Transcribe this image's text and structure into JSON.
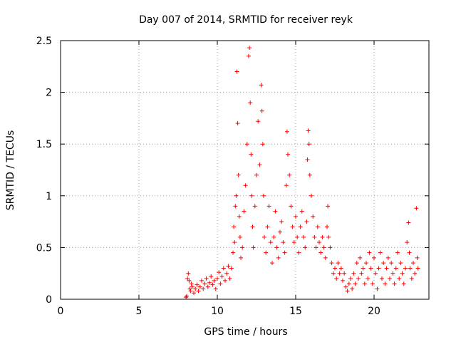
{
  "chart_data": {
    "type": "scatter",
    "title": "Day 007 of 2014, SRMTID for receiver reyk",
    "xlabel": "GPS time / hours",
    "ylabel": "SRMTID / TECUs",
    "xlim": [
      0,
      23.5
    ],
    "ylim": [
      0,
      2.5
    ],
    "x_ticks": [
      0,
      5,
      10,
      15,
      20
    ],
    "x_tick_labels": [
      "0",
      "5",
      "10",
      "15",
      "20"
    ],
    "y_ticks": [
      0,
      0.5,
      1,
      1.5,
      2,
      2.5
    ],
    "y_tick_labels": [
      "0",
      "0.5",
      "1",
      "1.5",
      "2",
      "2.5"
    ],
    "grid": true,
    "marker": "plus",
    "series": [
      {
        "name": "SRMTID",
        "color": "#ff0000",
        "points": [
          [
            8.0,
            0.02
          ],
          [
            8.05,
            0.03
          ],
          [
            8.1,
            0.2
          ],
          [
            8.15,
            0.25
          ],
          [
            8.2,
            0.18
          ],
          [
            8.25,
            0.1
          ],
          [
            8.3,
            0.08
          ],
          [
            8.35,
            0.15
          ],
          [
            8.4,
            0.12
          ],
          [
            8.5,
            0.06
          ],
          [
            8.6,
            0.1
          ],
          [
            8.7,
            0.14
          ],
          [
            8.8,
            0.08
          ],
          [
            8.9,
            0.12
          ],
          [
            9.0,
            0.18
          ],
          [
            9.1,
            0.1
          ],
          [
            9.2,
            0.15
          ],
          [
            9.3,
            0.2
          ],
          [
            9.4,
            0.12
          ],
          [
            9.5,
            0.16
          ],
          [
            9.6,
            0.22
          ],
          [
            9.7,
            0.14
          ],
          [
            9.8,
            0.18
          ],
          [
            9.9,
            0.1
          ],
          [
            10.0,
            0.2
          ],
          [
            10.1,
            0.26
          ],
          [
            10.2,
            0.15
          ],
          [
            10.3,
            0.22
          ],
          [
            10.4,
            0.3
          ],
          [
            10.5,
            0.18
          ],
          [
            10.6,
            0.25
          ],
          [
            10.7,
            0.32
          ],
          [
            10.8,
            0.2
          ],
          [
            10.9,
            0.3
          ],
          [
            11.0,
            0.45
          ],
          [
            11.05,
            0.7
          ],
          [
            11.1,
            0.55
          ],
          [
            11.15,
            0.9
          ],
          [
            11.2,
            1.0
          ],
          [
            11.25,
            2.2
          ],
          [
            11.3,
            1.7
          ],
          [
            11.35,
            1.2
          ],
          [
            11.4,
            0.8
          ],
          [
            11.45,
            0.6
          ],
          [
            11.5,
            0.4
          ],
          [
            11.6,
            0.5
          ],
          [
            11.7,
            0.85
          ],
          [
            11.8,
            1.1
          ],
          [
            11.9,
            1.5
          ],
          [
            12.0,
            2.35
          ],
          [
            12.05,
            2.43
          ],
          [
            12.1,
            1.9
          ],
          [
            12.15,
            1.4
          ],
          [
            12.2,
            1.0
          ],
          [
            12.25,
            0.7
          ],
          [
            12.3,
            0.5
          ],
          [
            12.4,
            0.9
          ],
          [
            12.5,
            1.2
          ],
          [
            12.6,
            1.72
          ],
          [
            12.7,
            1.3
          ],
          [
            12.8,
            2.07
          ],
          [
            12.85,
            1.82
          ],
          [
            12.9,
            1.5
          ],
          [
            12.95,
            1.0
          ],
          [
            13.0,
            0.6
          ],
          [
            13.1,
            0.45
          ],
          [
            13.2,
            0.7
          ],
          [
            13.3,
            0.9
          ],
          [
            13.4,
            0.55
          ],
          [
            13.5,
            0.35
          ],
          [
            13.6,
            0.6
          ],
          [
            13.7,
            0.85
          ],
          [
            13.8,
            0.5
          ],
          [
            13.9,
            0.4
          ],
          [
            14.0,
            0.65
          ],
          [
            14.1,
            0.75
          ],
          [
            14.2,
            0.55
          ],
          [
            14.3,
            0.45
          ],
          [
            14.4,
            1.1
          ],
          [
            14.45,
            1.62
          ],
          [
            14.5,
            1.4
          ],
          [
            14.6,
            1.2
          ],
          [
            14.7,
            0.9
          ],
          [
            14.8,
            0.7
          ],
          [
            14.9,
            0.55
          ],
          [
            15.0,
            0.8
          ],
          [
            15.1,
            0.6
          ],
          [
            15.2,
            0.45
          ],
          [
            15.3,
            0.7
          ],
          [
            15.4,
            0.85
          ],
          [
            15.5,
            0.6
          ],
          [
            15.6,
            0.5
          ],
          [
            15.7,
            0.75
          ],
          [
            15.75,
            1.35
          ],
          [
            15.8,
            1.63
          ],
          [
            15.85,
            1.5
          ],
          [
            15.9,
            1.2
          ],
          [
            16.0,
            1.0
          ],
          [
            16.1,
            0.8
          ],
          [
            16.2,
            0.6
          ],
          [
            16.3,
            0.5
          ],
          [
            16.4,
            0.7
          ],
          [
            16.5,
            0.55
          ],
          [
            16.6,
            0.45
          ],
          [
            16.7,
            0.6
          ],
          [
            16.8,
            0.5
          ],
          [
            16.9,
            0.4
          ],
          [
            17.0,
            0.7
          ],
          [
            17.05,
            0.9
          ],
          [
            17.1,
            0.6
          ],
          [
            17.2,
            0.5
          ],
          [
            17.3,
            0.35
          ],
          [
            17.4,
            0.25
          ],
          [
            17.5,
            0.3
          ],
          [
            17.6,
            0.2
          ],
          [
            17.7,
            0.35
          ],
          [
            17.8,
            0.25
          ],
          [
            17.9,
            0.3
          ],
          [
            18.0,
            0.18
          ],
          [
            18.1,
            0.25
          ],
          [
            18.2,
            0.12
          ],
          [
            18.3,
            0.08
          ],
          [
            18.4,
            0.15
          ],
          [
            18.5,
            0.2
          ],
          [
            18.6,
            0.1
          ],
          [
            18.7,
            0.25
          ],
          [
            18.8,
            0.15
          ],
          [
            18.9,
            0.35
          ],
          [
            19.0,
            0.2
          ],
          [
            19.1,
            0.4
          ],
          [
            19.2,
            0.25
          ],
          [
            19.3,
            0.3
          ],
          [
            19.4,
            0.15
          ],
          [
            19.5,
            0.35
          ],
          [
            19.6,
            0.2
          ],
          [
            19.7,
            0.45
          ],
          [
            19.8,
            0.3
          ],
          [
            19.9,
            0.15
          ],
          [
            20.0,
            0.4
          ],
          [
            20.1,
            0.25
          ],
          [
            20.2,
            0.1
          ],
          [
            20.3,
            0.3
          ],
          [
            20.4,
            0.45
          ],
          [
            20.5,
            0.2
          ],
          [
            20.6,
            0.35
          ],
          [
            20.7,
            0.15
          ],
          [
            20.8,
            0.3
          ],
          [
            20.9,
            0.4
          ],
          [
            21.0,
            0.2
          ],
          [
            21.1,
            0.35
          ],
          [
            21.2,
            0.25
          ],
          [
            21.3,
            0.15
          ],
          [
            21.4,
            0.3
          ],
          [
            21.5,
            0.45
          ],
          [
            21.6,
            0.2
          ],
          [
            21.7,
            0.35
          ],
          [
            21.8,
            0.25
          ],
          [
            21.9,
            0.15
          ],
          [
            22.0,
            0.3
          ],
          [
            22.1,
            0.55
          ],
          [
            22.2,
            0.74
          ],
          [
            22.25,
            0.45
          ],
          [
            22.3,
            0.3
          ],
          [
            22.4,
            0.2
          ],
          [
            22.5,
            0.35
          ],
          [
            22.6,
            0.25
          ],
          [
            22.7,
            0.88
          ],
          [
            22.75,
            0.4
          ],
          [
            22.8,
            0.3
          ]
        ]
      }
    ]
  }
}
